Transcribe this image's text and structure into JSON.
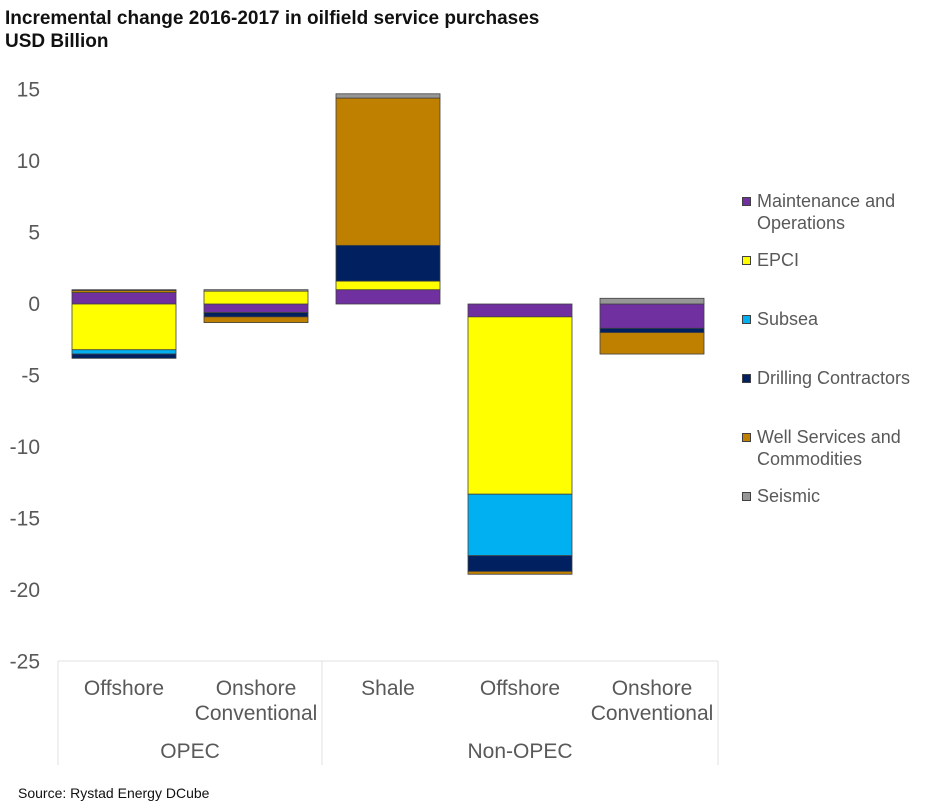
{
  "chart_data": {
    "type": "stacked-bar",
    "title": "Incremental change 2016-2017 in oilfield service purchases",
    "subtitle": "USD Billion",
    "ylim": [
      -25,
      15
    ],
    "yticks": [
      15,
      10,
      5,
      0,
      -5,
      -10,
      -15,
      -20,
      -25
    ],
    "categories": [
      {
        "label": "Offshore",
        "group": "OPEC"
      },
      {
        "label": "Onshore Conventional",
        "group": "OPEC"
      },
      {
        "label": "Shale",
        "group": "Non-OPEC"
      },
      {
        "label": "Offshore",
        "group": "Non-OPEC"
      },
      {
        "label": "Onshore Conventional",
        "group": "Non-OPEC"
      }
    ],
    "groups": [
      "OPEC",
      "Non-OPEC"
    ],
    "series": [
      {
        "name": "Maintenance and Operations",
        "color": "#7030A0",
        "values": [
          0.8,
          -0.6,
          1.0,
          -0.9,
          -1.7
        ]
      },
      {
        "name": "EPCI",
        "color": "#FFFF00",
        "values": [
          -3.2,
          0.9,
          0.6,
          -12.4,
          0.0
        ]
      },
      {
        "name": "Subsea",
        "color": "#00B0F0",
        "values": [
          -0.3,
          0.0,
          0.0,
          -4.3,
          0.0
        ]
      },
      {
        "name": "Drilling Contractors",
        "color": "#002060",
        "values": [
          -0.3,
          -0.3,
          2.5,
          -1.1,
          -0.3
        ]
      },
      {
        "name": "Well Services and Commodities",
        "color": "#BF8000",
        "values": [
          0.15,
          -0.4,
          10.3,
          -0.2,
          -1.5
        ]
      },
      {
        "name": "Seismic",
        "color": "#969696",
        "values": [
          0.05,
          0.1,
          0.3,
          0.0,
          0.4
        ]
      }
    ]
  },
  "legend": {
    "items": [
      {
        "label": "Maintenance and Operations",
        "color": "#7030A0"
      },
      {
        "label": "EPCI",
        "color": "#FFFF00"
      },
      {
        "label": "Subsea",
        "color": "#00B0F0"
      },
      {
        "label": "Drilling Contractors",
        "color": "#002060"
      },
      {
        "label": "Well Services and Commodities",
        "color": "#BF8000"
      },
      {
        "label": "Seismic",
        "color": "#969696"
      }
    ]
  },
  "source": "Source: Rystad Energy DCube"
}
